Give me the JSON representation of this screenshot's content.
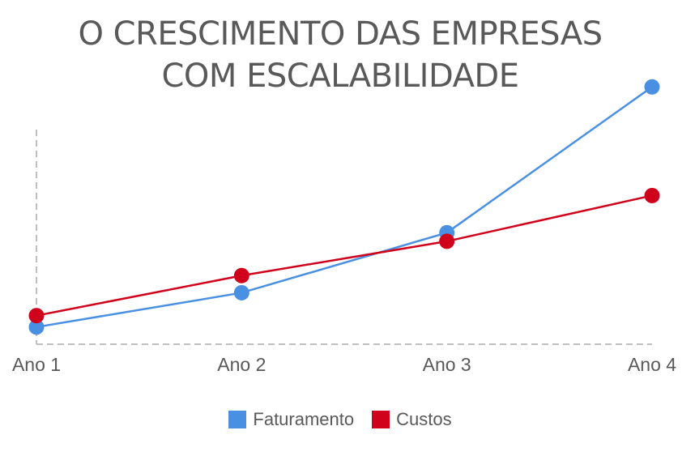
{
  "chart_data": {
    "type": "line",
    "title_lines": [
      "O CRESCIMENTO DAS EMPRESAS",
      "COM ESCALABILIDADE"
    ],
    "categories": [
      "Ano 1",
      "Ano 2",
      "Ano 3",
      "Ano 4"
    ],
    "series": [
      {
        "name": "Faturamento",
        "color": "#4A90E2",
        "values": [
          6,
          18,
          39,
          90
        ]
      },
      {
        "name": "Custos",
        "color": "#D0021B",
        "values": [
          10,
          24,
          36,
          52
        ]
      }
    ],
    "ylim": [
      0,
      100
    ],
    "xlabel": "",
    "ylabel": "",
    "grid": false,
    "legend_position": "bottom"
  }
}
